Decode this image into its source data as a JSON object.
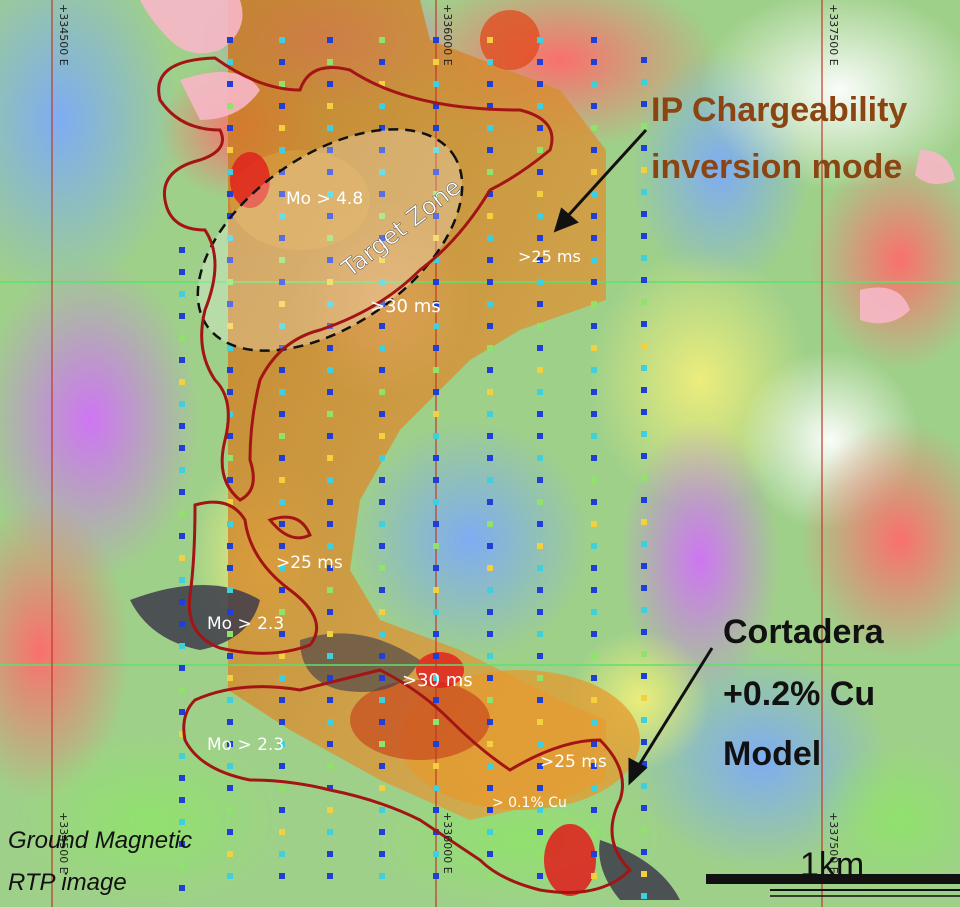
{
  "map": {
    "easting_labels": [
      "+334500 E",
      "+336000 E",
      "+337500 E"
    ],
    "bottom_easting_labels": [
      "+334500 E",
      "+336000 E",
      "+337500 E"
    ],
    "annotations": {
      "target_zone": "Target Zone",
      "mo_48": "Mo > 4.8",
      "ms30_upper": ">30 ms",
      "ms25_upper": ">25 ms",
      "ms25_mid": ">25 ms",
      "mo_23_a": "Mo > 2.3",
      "ms30_lower": ">30 ms",
      "mo_23_b": "Mo > 2.3",
      "ms25_lower": ">25 ms",
      "cu_01": "> 0.1% Cu"
    },
    "callouts": {
      "ip_line1": "IP Chargeability",
      "ip_line2": "inversion mode",
      "cu_line1": "Cortadera",
      "cu_line2": "+0.2% Cu",
      "cu_line3": "Model"
    },
    "caption": {
      "line1": "Ground Magnetic",
      "line2": "RTP image"
    },
    "scale_bar": {
      "label": "1km"
    },
    "colors": {
      "outline": "#a31515",
      "grid_green": "#5be36b",
      "grid_red": "#c0392b",
      "ip_callout": "#8b4513",
      "dot_blue": "#1f3fd6",
      "dot_cyan": "#3fd0e0",
      "chargeability_orange": "#d98a2a"
    }
  }
}
